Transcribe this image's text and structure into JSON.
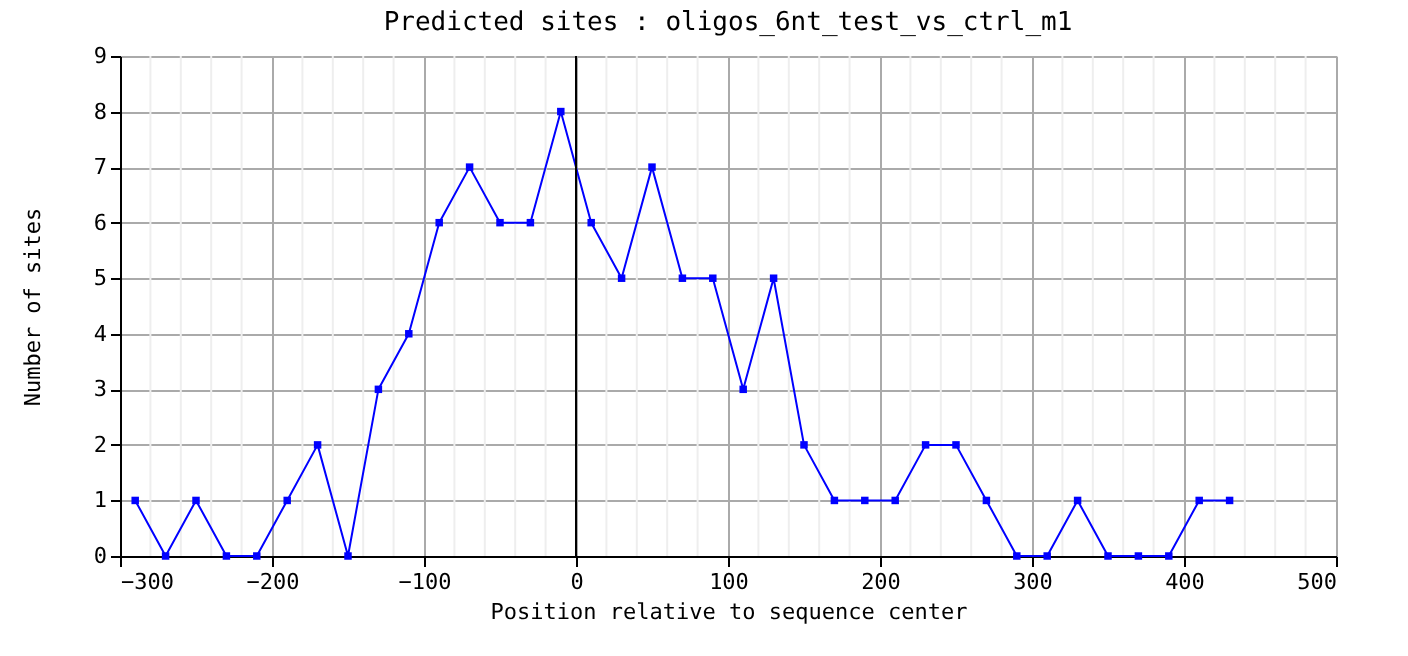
{
  "chart_data": {
    "type": "line",
    "title": "Predicted sites : oligos_6nt_test_vs_ctrl_m1",
    "xlabel": "Position relative to sequence center",
    "ylabel": "Number of sites",
    "x": [
      -290,
      -270,
      -250,
      -230,
      -210,
      -190,
      -170,
      -150,
      -130,
      -110,
      -90,
      -70,
      -50,
      -30,
      -10,
      10,
      30,
      50,
      70,
      90,
      110,
      130,
      150,
      170,
      190,
      210,
      230,
      250,
      270,
      290,
      310,
      330,
      350,
      370,
      390,
      410,
      430
    ],
    "series": [
      {
        "color": "#0000ff",
        "values": [
          1,
          0,
          1,
          0,
          0,
          1,
          2,
          0,
          3,
          4,
          6,
          7,
          6,
          6,
          8,
          6,
          5,
          7,
          5,
          5,
          3,
          5,
          2,
          1,
          1,
          1,
          2,
          2,
          1,
          0,
          0,
          1,
          0,
          0,
          0,
          1,
          1
        ]
      }
    ],
    "xlim": [
      -300,
      500
    ],
    "xticks": [
      -300,
      {
        "value": -280,
        "label": null
      },
      {
        "value": -260,
        "label": null
      },
      {
        "value": -240,
        "label": null
      },
      {
        "value": -220,
        "label": null
      },
      -200,
      {
        "value": -180,
        "label": null
      },
      {
        "value": -160,
        "label": null
      },
      {
        "value": -140,
        "label": null
      },
      {
        "value": -120,
        "label": null
      },
      -100,
      {
        "value": -80,
        "label": null
      },
      {
        "value": -60,
        "label": null
      },
      {
        "value": -40,
        "label": null
      },
      {
        "value": -20,
        "label": null
      },
      0,
      {
        "value": 20,
        "label": null
      },
      {
        "value": 40,
        "label": null
      },
      {
        "value": 60,
        "label": null
      },
      {
        "value": 80,
        "label": null
      },
      100,
      {
        "value": 120,
        "label": null
      },
      {
        "value": 140,
        "label": null
      },
      {
        "value": 160,
        "label": null
      },
      {
        "value": 180,
        "label": null
      },
      200,
      {
        "value": 220,
        "label": null
      },
      {
        "value": 240,
        "label": null
      },
      {
        "value": 260,
        "label": null
      },
      {
        "value": 280,
        "label": null
      },
      300,
      {
        "value": 320,
        "label": null
      },
      {
        "value": 340,
        "label": null
      },
      {
        "value": 360,
        "label": null
      },
      {
        "value": 380,
        "label": null
      },
      400,
      {
        "value": 420,
        "label": null
      },
      {
        "value": 440,
        "label": null
      },
      {
        "value": 460,
        "label": null
      },
      {
        "value": 480,
        "label": null
      },
      500
    ],
    "ylim": [
      0,
      9
    ],
    "yticks": [
      0,
      1,
      2,
      3,
      4,
      5,
      6,
      7,
      8,
      9
    ],
    "ref_lines": [
      {
        "axis": "x",
        "value": 0,
        "color": "#000000"
      }
    ],
    "grid": true,
    "marker": "square",
    "line_style": "solid"
  }
}
